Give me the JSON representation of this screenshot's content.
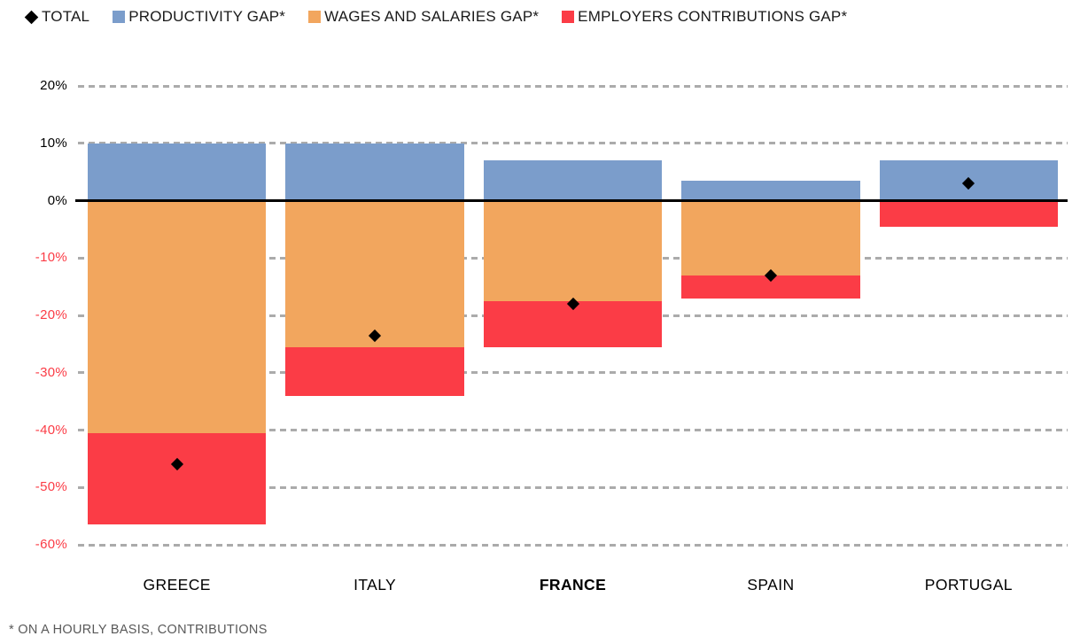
{
  "legend": [
    {
      "label": "TOTAL",
      "marker": "diamond",
      "color": "#000000"
    },
    {
      "label": "PRODUCTIVITY GAP*",
      "marker": "square",
      "color": "#7B9DCB"
    },
    {
      "label": "WAGES AND SALARIES GAP*",
      "marker": "square",
      "color": "#F2A65E"
    },
    {
      "label": "EMPLOYERS CONTRIBUTIONS GAP*",
      "marker": "square",
      "color": "#FB3C46"
    }
  ],
  "footnote": "* ON A HOURLY BASIS, CONTRIBUTIONS",
  "chart_data": {
    "type": "bar",
    "stacked": true,
    "categories": [
      "GREECE",
      "ITALY",
      "FRANCE",
      "SPAIN",
      "PORTUGAL"
    ],
    "series": [
      {
        "name": "PRODUCTIVITY GAP*",
        "color": "#7B9DCB",
        "values": [
          10,
          10,
          7,
          3.5,
          7
        ]
      },
      {
        "name": "WAGES AND SALARIES GAP*",
        "color": "#F2A65E",
        "values": [
          -40.5,
          -25.5,
          -17.5,
          -13,
          0
        ]
      },
      {
        "name": "EMPLOYERS CONTRIBUTIONS GAP*",
        "color": "#FB3C46",
        "values": [
          -16,
          -8.5,
          -8,
          -4,
          -4.5
        ]
      }
    ],
    "total_markers": {
      "name": "TOTAL",
      "color": "#000000",
      "values": [
        -46,
        -23.5,
        -18,
        -13,
        3
      ]
    },
    "y_axis": {
      "ticks": [
        20,
        10,
        0,
        -10,
        -20,
        -30,
        -40,
        -50,
        -60
      ],
      "format": "percent",
      "positive_label_color": "#000000",
      "negative_label_color": "#FB3C46"
    },
    "ylim": [
      -60,
      20
    ],
    "grid": "dashed-horizontal",
    "legend_position": "top-left",
    "highlighted_category": "FRANCE"
  }
}
